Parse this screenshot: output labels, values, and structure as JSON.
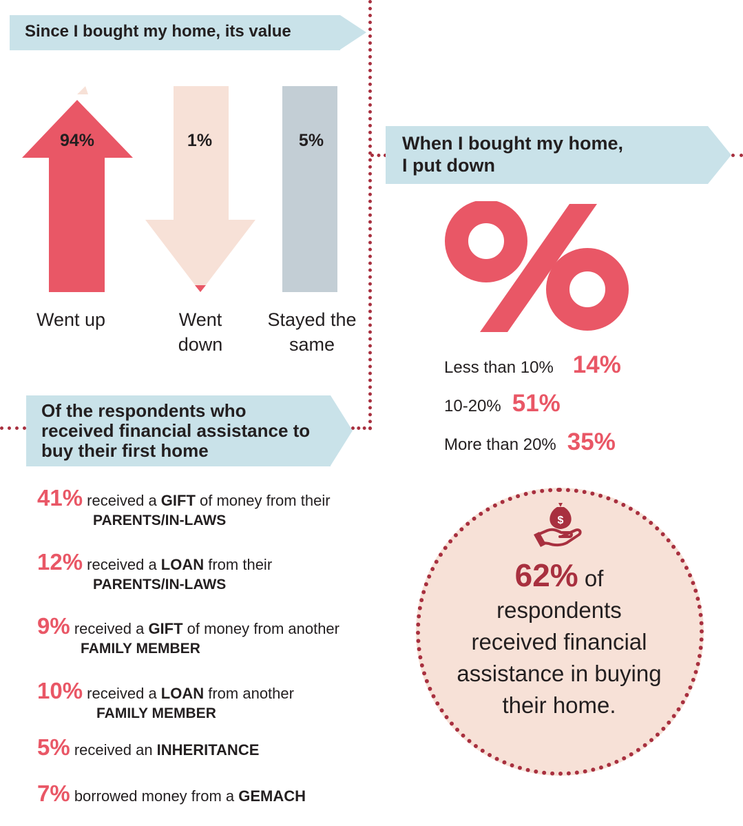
{
  "value_section": {
    "title": "Since I bought my home, its value",
    "items": [
      {
        "label_line1": "Went up",
        "label_line2": "",
        "value": "94%"
      },
      {
        "label_line1": "Went",
        "label_line2": "down",
        "value": "1%"
      },
      {
        "label_line1": "Stayed the",
        "label_line2": "same",
        "value": "5%"
      }
    ]
  },
  "down_payment": {
    "title_line1": "When I bought my home,",
    "title_line2": "I put down",
    "symbol": "percent-symbol",
    "rows": [
      {
        "label": "Less than 10%",
        "value": "14%"
      },
      {
        "label": "10-20%",
        "value": "51%"
      },
      {
        "label": "More than 20%",
        "value": "35%"
      }
    ]
  },
  "assistance": {
    "title_line1": "Of the respondents who",
    "title_line2": "received financial assistance to",
    "title_line3": "buy their first home",
    "items": [
      {
        "pct": "41%",
        "pre": " received a ",
        "key": "GIFT",
        "post": " of money from their",
        "line2": "PARENTS/IN-LAWS"
      },
      {
        "pct": "12%",
        "pre": " received a ",
        "key": "LOAN",
        "post": " from their",
        "line2": "PARENTS/IN-LAWS"
      },
      {
        "pct": "9%",
        "pre": " received a ",
        "key": "GIFT",
        "post": " of money from another",
        "line2": "FAMILY MEMBER"
      },
      {
        "pct": "10%",
        "pre": " received a ",
        "key": "LOAN",
        "post": " from another",
        "line2": "FAMILY MEMBER"
      },
      {
        "pct": "5%",
        "pre": " received an ",
        "key": "INHERITANCE",
        "post": "",
        "line2": ""
      },
      {
        "pct": "7%",
        "pre": " borrowed money from a ",
        "key": "GEMACH",
        "post": "",
        "line2": ""
      }
    ]
  },
  "summary": {
    "icon": "money-bag-in-hand-icon",
    "pct": "62%",
    "text_line1": " of",
    "text_line2": "respondents",
    "text_line3": "received financial",
    "text_line4": "assistance in buying",
    "text_line5": "their home."
  },
  "colors": {
    "accent_red": "#e95766",
    "dark_red": "#a8303f",
    "peach": "#f7e1d7",
    "grey_blue": "#c3ced5",
    "banner_blue": "#c9e2e9"
  },
  "chart_data": {
    "type": "bar",
    "title": "Since I bought my home, its value",
    "categories": [
      "Went up",
      "Went down",
      "Stayed the same"
    ],
    "values": [
      94,
      1,
      5
    ],
    "ylim": [
      0,
      100
    ]
  }
}
